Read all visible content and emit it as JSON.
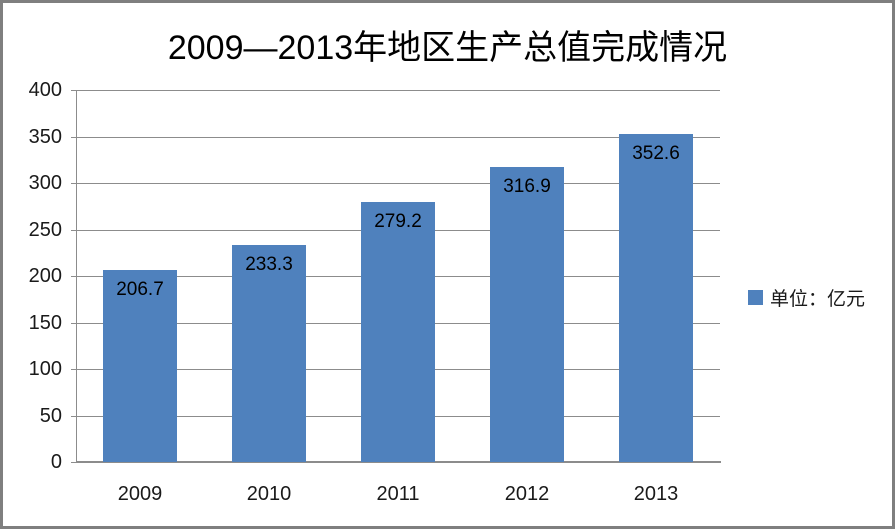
{
  "window": {
    "background_color": "#ffffff",
    "border_color": "#7f7f7f"
  },
  "chart_data": {
    "type": "bar",
    "title": "2009—2013年地区生产总值完成情况",
    "categories": [
      "2009",
      "2010",
      "2011",
      "2012",
      "2013"
    ],
    "values": [
      206.7,
      233.3,
      279.2,
      316.9,
      352.6
    ],
    "data_labels": [
      "206.7",
      "233.3",
      "279.2",
      "316.9",
      "352.6"
    ],
    "series_name": "单位：亿元",
    "xlabel": "",
    "ylabel": "",
    "ylim": [
      0,
      400
    ],
    "yticks": [
      0,
      50,
      100,
      150,
      200,
      250,
      300,
      350,
      400
    ],
    "grid": true,
    "legend_position": "right",
    "bar_color": "#4f81bd",
    "gridline_color": "#8c8c8c",
    "axis_color": "#8c8c8c",
    "tick_label_color": "#1a1a1a",
    "data_label_color": "#000000"
  },
  "legend": {
    "label": "单位：亿元",
    "swatch_color": "#4f81bd"
  }
}
